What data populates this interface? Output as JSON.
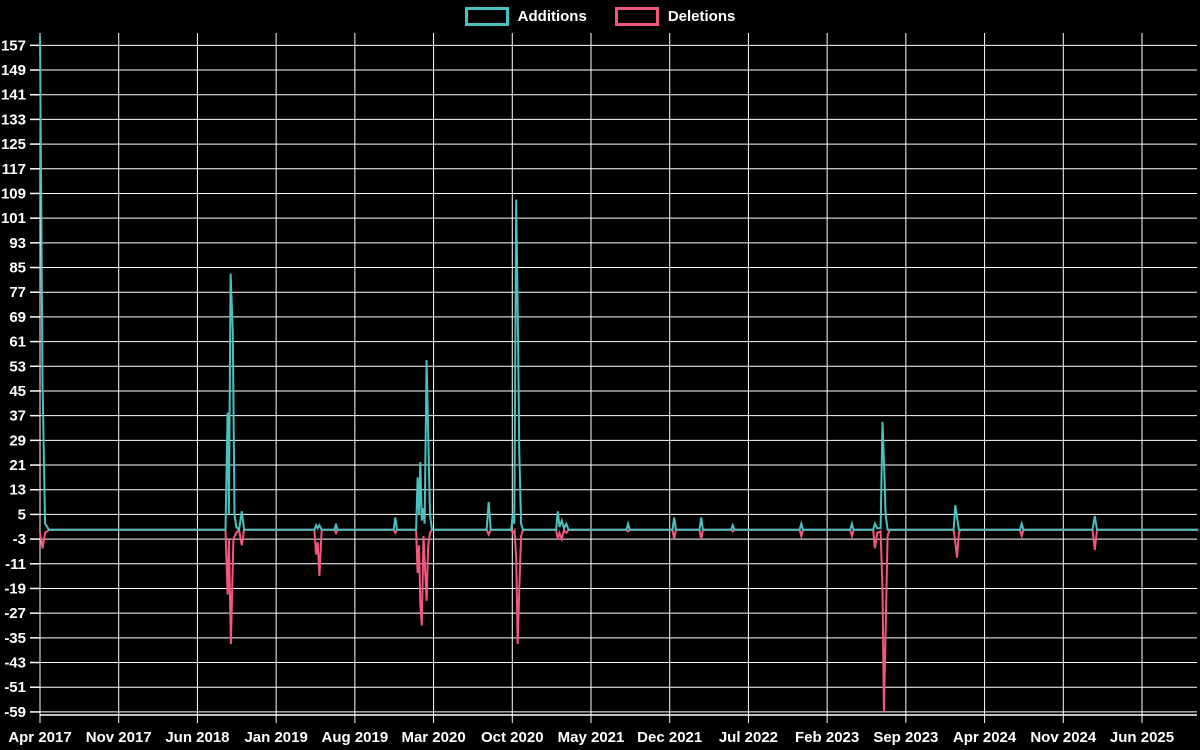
{
  "legend": {
    "items": [
      {
        "label": "Additions",
        "color": "#4BC0C0"
      },
      {
        "label": "Deletions",
        "color": "#F4577D"
      }
    ]
  },
  "colors": {
    "background": "#000000",
    "grid": "#FFFFFF",
    "text": "#FFFFFF",
    "additions": "#4BC0C0",
    "deletions": "#F4577D"
  },
  "chart_data": {
    "type": "line",
    "title": "",
    "xlabel": "",
    "ylabel": "",
    "legend_position": "top-center",
    "grid": true,
    "x_axis": {
      "labels": [
        "Apr 2017",
        "Nov 2017",
        "Jun 2018",
        "Jan 2019",
        "Aug 2019",
        "Mar 2020",
        "Oct 2020",
        "May 2021",
        "Dec 2021",
        "Jul 2022",
        "Feb 2023",
        "Sep 2023",
        "Apr 2024",
        "Nov 2024",
        "Jun 2025"
      ],
      "months_per_label": 7,
      "domain_months": [
        0,
        103
      ]
    },
    "y_axis": {
      "ticks": [
        157,
        149,
        141,
        133,
        125,
        117,
        109,
        101,
        93,
        85,
        77,
        69,
        61,
        53,
        45,
        37,
        29,
        21,
        13,
        5,
        -3,
        -11,
        -19,
        -27,
        -35,
        -43,
        -51,
        -59
      ],
      "domain": [
        -60,
        161
      ]
    },
    "series": [
      {
        "name": "Additions",
        "color": "#4BC0C0",
        "points": [
          [
            0,
            160
          ],
          [
            0.22,
            48
          ],
          [
            0.45,
            2
          ],
          [
            0.8,
            0
          ],
          [
            16.5,
            0
          ],
          [
            16.68,
            38
          ],
          [
            16.8,
            5
          ],
          [
            16.95,
            83
          ],
          [
            17.15,
            64
          ],
          [
            17.3,
            5
          ],
          [
            17.45,
            1
          ],
          [
            17.7,
            0
          ],
          [
            17.95,
            6
          ],
          [
            18.15,
            0
          ],
          [
            24.4,
            0
          ],
          [
            24.55,
            1.5
          ],
          [
            24.7,
            0.5
          ],
          [
            24.85,
            1.5
          ],
          [
            25.05,
            0
          ],
          [
            26.2,
            0
          ],
          [
            26.32,
            2
          ],
          [
            26.45,
            0
          ],
          [
            31.45,
            0
          ],
          [
            31.6,
            4
          ],
          [
            31.75,
            0
          ],
          [
            33.45,
            0
          ],
          [
            33.58,
            17
          ],
          [
            33.7,
            5
          ],
          [
            33.82,
            22
          ],
          [
            33.95,
            3
          ],
          [
            34.08,
            7
          ],
          [
            34.2,
            2
          ],
          [
            34.38,
            55
          ],
          [
            34.52,
            31
          ],
          [
            34.68,
            5
          ],
          [
            34.85,
            0
          ],
          [
            39.72,
            0
          ],
          [
            39.9,
            9
          ],
          [
            40.08,
            0
          ],
          [
            41.9,
            0
          ],
          [
            42.05,
            5
          ],
          [
            42.18,
            2
          ],
          [
            42.35,
            107
          ],
          [
            42.5,
            66
          ],
          [
            42.62,
            25
          ],
          [
            42.78,
            2
          ],
          [
            42.95,
            0
          ],
          [
            45.9,
            0
          ],
          [
            46.05,
            6
          ],
          [
            46.2,
            1
          ],
          [
            46.4,
            3
          ],
          [
            46.6,
            0.5
          ],
          [
            46.8,
            2
          ],
          [
            47.0,
            0
          ],
          [
            52.15,
            0
          ],
          [
            52.3,
            2
          ],
          [
            52.45,
            0
          ],
          [
            56.25,
            0
          ],
          [
            56.4,
            4
          ],
          [
            56.55,
            0
          ],
          [
            58.65,
            0
          ],
          [
            58.8,
            4
          ],
          [
            58.95,
            0
          ],
          [
            61.45,
            0
          ],
          [
            61.6,
            1.5
          ],
          [
            61.75,
            0
          ],
          [
            67.55,
            0
          ],
          [
            67.7,
            2
          ],
          [
            67.85,
            0
          ],
          [
            72.05,
            0
          ],
          [
            72.2,
            2
          ],
          [
            72.35,
            0
          ],
          [
            74.1,
            0
          ],
          [
            74.25,
            2
          ],
          [
            74.45,
            0.5
          ],
          [
            74.75,
            0.5
          ],
          [
            74.92,
            35
          ],
          [
            75.08,
            19
          ],
          [
            75.2,
            5
          ],
          [
            75.38,
            0
          ],
          [
            81.25,
            0
          ],
          [
            81.4,
            8
          ],
          [
            81.55,
            4
          ],
          [
            81.72,
            0
          ],
          [
            87.15,
            0
          ],
          [
            87.3,
            2
          ],
          [
            87.45,
            0
          ],
          [
            93.6,
            0
          ],
          [
            93.8,
            4.5
          ],
          [
            94.0,
            0
          ],
          [
            103,
            0
          ]
        ]
      },
      {
        "name": "Deletions",
        "color": "#F4577D",
        "points": [
          [
            0,
            -1
          ],
          [
            0.22,
            -6
          ],
          [
            0.45,
            -1
          ],
          [
            0.8,
            0
          ],
          [
            16.5,
            0
          ],
          [
            16.68,
            -21
          ],
          [
            16.8,
            -3
          ],
          [
            16.98,
            -37
          ],
          [
            17.2,
            -3
          ],
          [
            17.45,
            -1
          ],
          [
            17.7,
            0
          ],
          [
            17.95,
            -5
          ],
          [
            18.15,
            0
          ],
          [
            24.4,
            0
          ],
          [
            24.55,
            -8
          ],
          [
            24.7,
            -4
          ],
          [
            24.85,
            -15
          ],
          [
            25.05,
            0
          ],
          [
            26.2,
            0
          ],
          [
            26.32,
            -1
          ],
          [
            26.45,
            0
          ],
          [
            31.45,
            0
          ],
          [
            31.6,
            -1
          ],
          [
            31.75,
            0
          ],
          [
            33.45,
            0
          ],
          [
            33.58,
            -14
          ],
          [
            33.7,
            -5
          ],
          [
            33.82,
            -24
          ],
          [
            33.95,
            -31
          ],
          [
            34.1,
            -2
          ],
          [
            34.38,
            -23
          ],
          [
            34.52,
            -5
          ],
          [
            34.68,
            -1
          ],
          [
            34.85,
            0
          ],
          [
            39.72,
            0
          ],
          [
            39.9,
            -1.5
          ],
          [
            40.08,
            0
          ],
          [
            41.9,
            0
          ],
          [
            42.05,
            -1
          ],
          [
            42.2,
            -0.2
          ],
          [
            42.35,
            -9
          ],
          [
            42.48,
            -37
          ],
          [
            42.62,
            -19
          ],
          [
            42.78,
            -2
          ],
          [
            42.95,
            0
          ],
          [
            45.9,
            0
          ],
          [
            46.05,
            -3
          ],
          [
            46.2,
            -1
          ],
          [
            46.4,
            -3
          ],
          [
            46.6,
            0
          ],
          [
            46.8,
            -1
          ],
          [
            47.0,
            0
          ],
          [
            52.15,
            0
          ],
          [
            52.3,
            -0.5
          ],
          [
            52.45,
            0
          ],
          [
            56.25,
            0
          ],
          [
            56.4,
            -3
          ],
          [
            56.55,
            0
          ],
          [
            58.65,
            0
          ],
          [
            58.8,
            -3
          ],
          [
            58.95,
            0
          ],
          [
            61.45,
            0
          ],
          [
            61.6,
            -0.5
          ],
          [
            61.75,
            0
          ],
          [
            67.55,
            0
          ],
          [
            67.7,
            -2
          ],
          [
            67.85,
            0
          ],
          [
            72.05,
            0
          ],
          [
            72.2,
            -2
          ],
          [
            72.35,
            0
          ],
          [
            74.1,
            0
          ],
          [
            74.25,
            -6
          ],
          [
            74.45,
            -1
          ],
          [
            74.75,
            -0.5
          ],
          [
            74.92,
            -19
          ],
          [
            75.05,
            -59
          ],
          [
            75.2,
            -33
          ],
          [
            75.38,
            -2
          ],
          [
            75.55,
            0
          ],
          [
            81.25,
            0
          ],
          [
            81.4,
            -4
          ],
          [
            81.55,
            -9
          ],
          [
            81.72,
            -1
          ],
          [
            81.85,
            0
          ],
          [
            87.15,
            0
          ],
          [
            87.3,
            -2
          ],
          [
            87.45,
            0
          ],
          [
            93.6,
            0
          ],
          [
            93.8,
            -6.5
          ],
          [
            94.0,
            0
          ],
          [
            103,
            0
          ]
        ]
      }
    ]
  }
}
